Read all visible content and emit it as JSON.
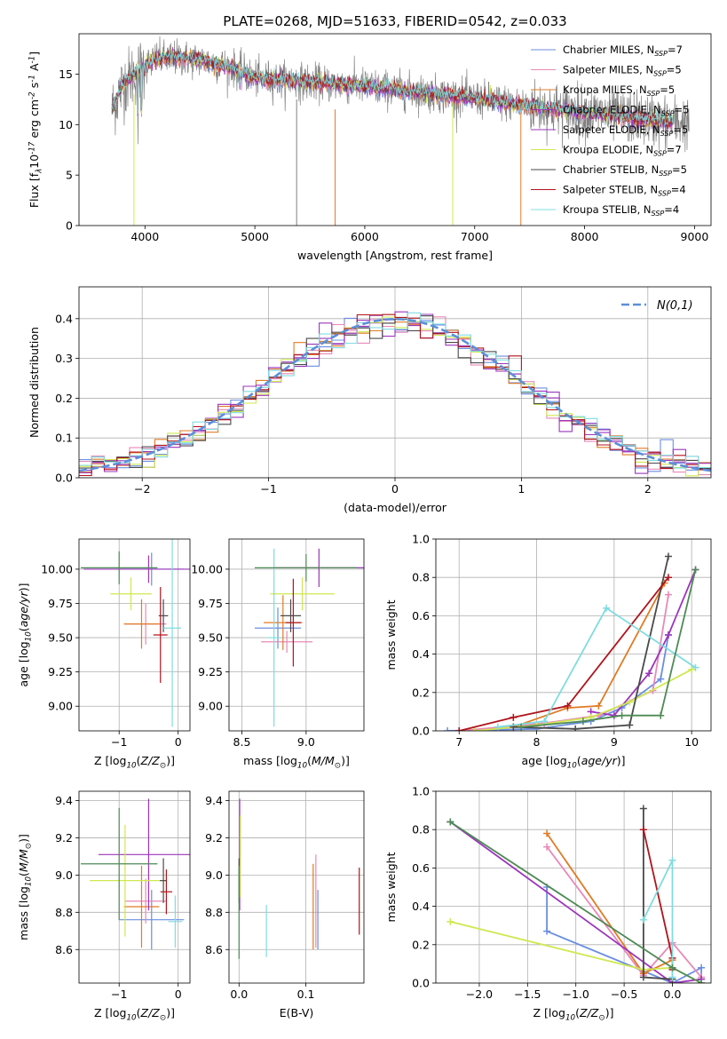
{
  "figure": {
    "title": "PLATE=0268, MJD=51633, FIBERID=0542, z=0.033"
  },
  "colors": {
    "Chabrier MILES": "#6a8ee0",
    "Salpeter MILES": "#e889b7",
    "Kroupa MILES": "#e07b25",
    "Chabrier ELODIE": "#9b35bb",
    "Salpeter ELODIE": "#9b35bb",
    "Kroupa ELODIE": "#cfe84f",
    "Chabrier STELIB": "#4a4a4a",
    "Salpeter STELIB": "#b0141c",
    "Kroupa STELIB": "#80dcdf",
    "data": "#808080",
    "normal": "#5b8fd8",
    "green": "#4e8a55"
  },
  "chart_data": [
    {
      "id": "spectrum",
      "type": "line",
      "xlabel": "wavelength [Angstrom, rest frame]",
      "ylabel": "Flux [f$_\\lambda$10$^{-17}$ erg cm$^{-2}$ s$^{-1}$ A$^{-1}$]",
      "xlim": [
        3400,
        9150
      ],
      "ylim": [
        0,
        19
      ],
      "xticks": [
        "4000",
        "5000",
        "6000",
        "7000",
        "8000",
        "9000"
      ],
      "yticks": [
        "0",
        "5",
        "10",
        "15"
      ],
      "legend_position": "top-right",
      "legend": [
        {
          "name": "Chabrier MILES",
          "nssp": "7"
        },
        {
          "name": "Salpeter MILES",
          "nssp": "5"
        },
        {
          "name": "Kroupa MILES",
          "nssp": "5"
        },
        {
          "name": "Chabrier ELODIE",
          "nssp": "5"
        },
        {
          "name": "Salpeter ELODIE",
          "nssp": "5"
        },
        {
          "name": "Kroupa ELODIE",
          "nssp": "7"
        },
        {
          "name": "Chabrier STELIB",
          "nssp": "5"
        },
        {
          "name": "Salpeter STELIB",
          "nssp": "4"
        },
        {
          "name": "Kroupa STELIB",
          "nssp": "4"
        }
      ],
      "continuum_x": [
        3700,
        3800,
        3900,
        4000,
        4100,
        4300,
        4500,
        4800,
        5000,
        5500,
        6000,
        6500,
        7000,
        7500,
        8000,
        8500,
        8800
      ],
      "continuum_y": [
        11.5,
        14.0,
        15.0,
        15.8,
        16.5,
        16.6,
        16.4,
        15.6,
        14.6,
        14.2,
        13.8,
        13.2,
        12.6,
        11.8,
        11.2,
        10.6,
        10.2
      ],
      "model_range": [
        3700,
        8800
      ],
      "data_range": [
        3700,
        8950
      ]
    },
    {
      "id": "residuals",
      "type": "line",
      "xlabel": "(data-model)/error",
      "ylabel": "Normed distribution",
      "xlim": [
        -2.5,
        2.5
      ],
      "ylim": [
        0,
        0.48
      ],
      "xticks": [
        "−2",
        "−1",
        "0",
        "1",
        "2"
      ],
      "yticks": [
        "0.0",
        "0.1",
        "0.2",
        "0.3",
        "0.4"
      ],
      "grid": true,
      "legend_position": "top-right",
      "legend": [
        {
          "name": "$\\mathcal{N}(0,1)$"
        }
      ],
      "bin_width": 0.1
    },
    {
      "id": "age_vs_Z",
      "type": "scatter",
      "xlabel": "Z [log$_{10}$($Z/Z_\\odot$)]",
      "ylabel": "age  [log$_{10}$($age/yr$)]",
      "xlim": [
        -1.68,
        0.2
      ],
      "ylim": [
        8.82,
        10.22
      ],
      "xticks": [
        "−1",
        "0"
      ],
      "yticks": [
        "9.00",
        "9.25",
        "9.50",
        "9.75",
        "10.00"
      ],
      "grid": true,
      "points": [
        {
          "model": "Chabrier MILES",
          "x": -0.45,
          "y": 10.0,
          "xerr": 0.55,
          "yerr": 0.12
        },
        {
          "model": "Salpeter MILES",
          "x": -0.55,
          "y": 9.6,
          "xerr": 0.35,
          "yerr": 0.15
        },
        {
          "model": "Kroupa MILES",
          "x": -0.62,
          "y": 9.6,
          "xerr": 0.3,
          "yerr": 0.18
        },
        {
          "model": "Chabrier ELODIE",
          "x": -0.5,
          "y": 10.0,
          "xerr": 1.1,
          "yerr": 0.1
        },
        {
          "model": "Kroupa ELODIE",
          "x": -0.8,
          "y": 9.82,
          "xerr": 0.35,
          "yerr": 0.12
        },
        {
          "model": "Chabrier STELIB",
          "x": -0.25,
          "y": 9.66,
          "xerr": 0.08,
          "yerr": 0.12
        },
        {
          "model": "Salpeter STELIB",
          "x": -0.3,
          "y": 9.52,
          "xerr": 0.12,
          "yerr": 0.35
        },
        {
          "model": "Kroupa STELIB",
          "x": -0.1,
          "y": 9.57,
          "xerr": 0.15,
          "yerr": 0.72
        },
        {
          "model": "green",
          "x": -1.0,
          "y": 10.01,
          "xerr": 0.65,
          "yerr": 0.12
        }
      ]
    },
    {
      "id": "age_vs_mass",
      "type": "scatter",
      "xlabel": "mass [log$_{10}$($M/M_\\odot$)]",
      "ylabel": "",
      "xlim": [
        8.4,
        9.45
      ],
      "ylim": [
        8.82,
        10.22
      ],
      "xticks": [
        "8.5",
        "9.0"
      ],
      "yticks": [
        "9.00",
        "9.25",
        "9.50",
        "9.75",
        "10.00"
      ],
      "grid": true,
      "points": [
        {
          "model": "Chabrier MILES",
          "x": 8.78,
          "y": 9.57,
          "xerr": 0.18,
          "yerr": 0.15
        },
        {
          "model": "Salpeter MILES",
          "x": 8.85,
          "y": 9.47,
          "xerr": 0.2,
          "yerr": 0.08
        },
        {
          "model": "Kroupa MILES",
          "x": 8.82,
          "y": 9.61,
          "xerr": 0.15,
          "yerr": 0.2
        },
        {
          "model": "Chabrier ELODIE",
          "x": 9.1,
          "y": 10.01,
          "xerr": 0.35,
          "yerr": 0.14
        },
        {
          "model": "Kroupa ELODIE",
          "x": 8.97,
          "y": 9.82,
          "xerr": 0.25,
          "yerr": 0.12
        },
        {
          "model": "Chabrier STELIB",
          "x": 8.88,
          "y": 9.66,
          "xerr": 0.08,
          "yerr": 0.12
        },
        {
          "model": "Salpeter STELIB",
          "x": 8.9,
          "y": 9.61,
          "xerr": 0.06,
          "yerr": 0.32
        },
        {
          "model": "Kroupa STELIB",
          "x": 8.75,
          "y": 9.5,
          "xerr": 0.05,
          "yerr": 0.65
        },
        {
          "model": "green",
          "x": 9.0,
          "y": 10.01,
          "xerr": 0.4,
          "yerr": 0.1
        }
      ]
    },
    {
      "id": "weight_vs_age",
      "type": "line",
      "xlabel": "age  [log$_{10}$($age/yr$)]",
      "ylabel": "mass weight",
      "xlim": [
        6.7,
        10.25
      ],
      "ylim": [
        0,
        1.0
      ],
      "xticks": [
        "7",
        "8",
        "9",
        "10"
      ],
      "yticks": [
        "0.0",
        "0.2",
        "0.4",
        "0.6",
        "0.8",
        "1.0"
      ],
      "grid": true,
      "series": [
        {
          "model": "Chabrier MILES",
          "x": [
            6.85,
            8.0,
            8.7,
            9.1,
            9.6,
            9.7
          ],
          "y": [
            0.0,
            0.01,
            0.05,
            0.12,
            0.27,
            0.5
          ]
        },
        {
          "model": "Salpeter MILES",
          "x": [
            7.0,
            8.1,
            8.8,
            9.5,
            9.7
          ],
          "y": [
            0.0,
            0.04,
            0.08,
            0.21,
            0.71
          ]
        },
        {
          "model": "Kroupa MILES",
          "x": [
            7.7,
            8.4,
            8.8,
            9.65
          ],
          "y": [
            0.02,
            0.12,
            0.13,
            0.77
          ]
        },
        {
          "model": "Chabrier ELODIE",
          "x": [
            8.7,
            9.0,
            9.45,
            9.7,
            10.05
          ],
          "y": [
            0.1,
            0.08,
            0.3,
            0.5,
            0.84
          ]
        },
        {
          "model": "Kroupa ELODIE",
          "x": [
            7.2,
            8.0,
            8.7,
            9.2,
            10.0
          ],
          "y": [
            0.0,
            0.03,
            0.07,
            0.15,
            0.32
          ]
        },
        {
          "model": "Chabrier STELIB",
          "x": [
            7.7,
            8.5,
            9.2,
            9.7
          ],
          "y": [
            0.02,
            0.01,
            0.03,
            0.91
          ]
        },
        {
          "model": "Salpeter STELIB",
          "x": [
            7.0,
            7.7,
            8.4,
            9.7
          ],
          "y": [
            0.0,
            0.07,
            0.13,
            0.8
          ]
        },
        {
          "model": "Kroupa STELIB",
          "x": [
            7.5,
            8.1,
            8.9,
            10.05
          ],
          "y": [
            0.02,
            0.05,
            0.64,
            0.33
          ]
        },
        {
          "model": "green",
          "x": [
            7.8,
            8.6,
            9.1,
            9.6,
            10.05
          ],
          "y": [
            0.02,
            0.05,
            0.08,
            0.08,
            0.84
          ]
        }
      ]
    },
    {
      "id": "mass_vs_Z",
      "type": "scatter",
      "xlabel": "Z [log$_{10}$($Z/Z_\\odot$)]",
      "ylabel": "mass [log$_{10}$($M/M_\\odot$)]",
      "xlim": [
        -1.68,
        0.2
      ],
      "ylim": [
        8.42,
        9.45
      ],
      "xticks": [
        "−1",
        "0"
      ],
      "yticks": [
        "8.6",
        "8.8",
        "9.0",
        "9.2",
        "9.4"
      ],
      "grid": true,
      "points": [
        {
          "model": "Chabrier MILES",
          "x": -0.45,
          "y": 8.76,
          "xerr": 0.55,
          "yerr": 0.16
        },
        {
          "model": "Salpeter MILES",
          "x": -0.55,
          "y": 8.86,
          "xerr": 0.35,
          "yerr": 0.12
        },
        {
          "model": "Kroupa MILES",
          "x": -0.62,
          "y": 8.83,
          "xerr": 0.3,
          "yerr": 0.22
        },
        {
          "model": "Chabrier ELODIE",
          "x": -0.5,
          "y": 9.11,
          "xerr": 0.85,
          "yerr": 0.3
        },
        {
          "model": "Kroupa ELODIE",
          "x": -0.9,
          "y": 8.97,
          "xerr": 0.6,
          "yerr": 0.3
        },
        {
          "model": "Chabrier STELIB",
          "x": -0.25,
          "y": 8.97,
          "xerr": 0.06,
          "yerr": 0.12
        },
        {
          "model": "Salpeter STELIB",
          "x": -0.2,
          "y": 8.91,
          "xerr": 0.1,
          "yerr": 0.12
        },
        {
          "model": "Kroupa STELIB",
          "x": -0.05,
          "y": 8.75,
          "xerr": 0.12,
          "yerr": 0.14
        },
        {
          "model": "green",
          "x": -1.0,
          "y": 9.06,
          "xerr": 0.65,
          "yerr": 0.3
        }
      ]
    },
    {
      "id": "mass_vs_EBV",
      "type": "scatter",
      "xlabel": "E(B-V)",
      "ylabel": "",
      "xlim": [
        -0.015,
        0.187
      ],
      "ylim": [
        8.42,
        9.45
      ],
      "xticks": [
        "0.0",
        "0.1"
      ],
      "yticks": [
        "8.6",
        "8.8",
        "9.0",
        "9.2",
        "9.4"
      ],
      "grid": true,
      "points": [
        {
          "model": "Chabrier MILES",
          "x": 0.118,
          "y": 8.76,
          "xerr": 0,
          "yerr": 0.16
        },
        {
          "model": "Salpeter MILES",
          "x": 0.115,
          "y": 8.86,
          "xerr": 0,
          "yerr": 0.25
        },
        {
          "model": "Kroupa MILES",
          "x": 0.111,
          "y": 8.83,
          "xerr": 0,
          "yerr": 0.23
        },
        {
          "model": "Chabrier ELODIE",
          "x": 0.001,
          "y": 9.11,
          "xerr": 0,
          "yerr": 0.3
        },
        {
          "model": "Kroupa ELODIE",
          "x": 0.002,
          "y": 9.1,
          "xerr": 0,
          "yerr": 0.22
        },
        {
          "model": "Chabrier STELIB",
          "x": 0.0,
          "y": 8.97,
          "xerr": 0,
          "yerr": 0.12
        },
        {
          "model": "Salpeter STELIB",
          "x": 0.18,
          "y": 8.86,
          "xerr": 0,
          "yerr": 0.18
        },
        {
          "model": "Kroupa STELIB",
          "x": 0.041,
          "y": 8.7,
          "xerr": 0,
          "yerr": 0.14
        },
        {
          "model": "green",
          "x": 0.0,
          "y": 8.8,
          "xerr": 0,
          "yerr": 0.25
        }
      ]
    },
    {
      "id": "weight_vs_Z",
      "type": "line",
      "xlabel": "Z [log$_{10}$($Z/Z_\\odot$)]",
      "ylabel": "mass weight",
      "xlim": [
        -2.45,
        0.4
      ],
      "ylim": [
        0,
        1.0
      ],
      "xticks": [
        "−2.0",
        "−1.5",
        "−1.0",
        "−0.5",
        "0.0"
      ],
      "yticks": [
        "0.0",
        "0.2",
        "0.4",
        "0.6",
        "0.8",
        "1.0"
      ],
      "grid": true,
      "series": [
        {
          "model": "Chabrier MILES",
          "x": [
            -1.3,
            -1.3,
            0.0,
            0.3,
            0.3
          ],
          "y": [
            0.5,
            0.27,
            0.0,
            0.08,
            0.0
          ]
        },
        {
          "model": "Salpeter MILES",
          "x": [
            -1.3,
            -0.3,
            0.0,
            0.3
          ],
          "y": [
            0.71,
            0.04,
            0.21,
            0.03
          ]
        },
        {
          "model": "Kroupa MILES",
          "x": [
            -1.3,
            -0.3,
            0.0
          ],
          "y": [
            0.78,
            0.05,
            0.12
          ]
        },
        {
          "model": "Chabrier ELODIE",
          "x": [
            -2.3,
            0.0,
            0.3
          ],
          "y": [
            0.84,
            0.0,
            0.02
          ]
        },
        {
          "model": "Kroupa ELODIE",
          "x": [
            -2.3,
            -0.3,
            0.0,
            0.3
          ],
          "y": [
            0.32,
            0.07,
            0.08,
            0.0
          ]
        },
        {
          "model": "Chabrier STELIB",
          "x": [
            -0.3,
            -0.3,
            0.0
          ],
          "y": [
            0.91,
            0.03,
            0.02
          ]
        },
        {
          "model": "Salpeter STELIB",
          "x": [
            -0.3,
            0.0,
            0.0
          ],
          "y": [
            0.8,
            0.13,
            0.07
          ]
        },
        {
          "model": "Kroupa STELIB",
          "x": [
            -0.3,
            0.0,
            0.0
          ],
          "y": [
            0.33,
            0.64,
            0.03
          ]
        },
        {
          "model": "green",
          "x": [
            -2.3,
            0.0,
            0.3
          ],
          "y": [
            0.84,
            0.08,
            0.0
          ]
        }
      ]
    }
  ]
}
